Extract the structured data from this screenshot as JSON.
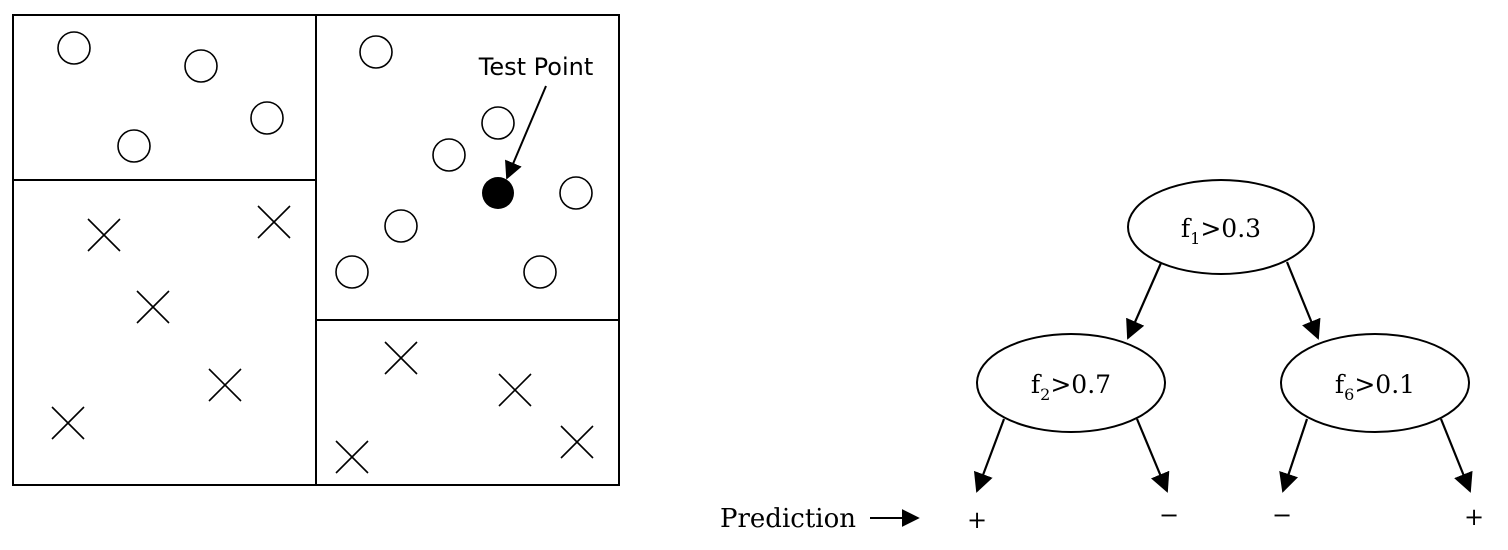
{
  "partition_panel": {
    "test_point_label": "Test Point"
  },
  "decision_tree": {
    "root": {
      "feature": "f",
      "index": "1",
      "condition": ">0.3"
    },
    "left": {
      "feature": "f",
      "index": "2",
      "condition": ">0.7"
    },
    "right": {
      "feature": "f",
      "index": "6",
      "condition": ">0.1"
    },
    "prediction_label": "Prediction",
    "leaves": [
      "+",
      "−",
      "−",
      "+"
    ]
  }
}
